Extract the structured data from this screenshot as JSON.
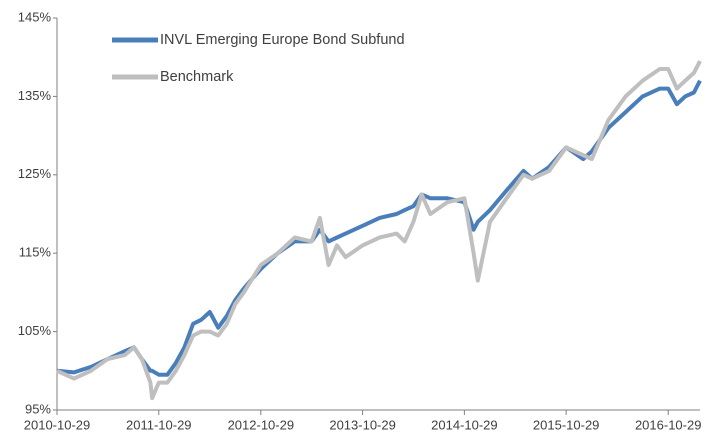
{
  "chart_data": {
    "type": "line",
    "x": [
      "2010-10-29",
      "2010-12-29",
      "2011-02-28",
      "2011-04-29",
      "2011-06-29",
      "2011-08-01",
      "2011-08-29",
      "2011-09-29",
      "2011-10-05",
      "2011-10-29",
      "2011-11-29",
      "2011-12-29",
      "2012-01-29",
      "2012-02-29",
      "2012-03-29",
      "2012-04-29",
      "2012-05-29",
      "2012-06-29",
      "2012-07-29",
      "2012-08-29",
      "2012-10-29",
      "2012-12-29",
      "2013-02-28",
      "2013-04-29",
      "2013-05-29",
      "2013-06-29",
      "2013-07-29",
      "2013-08-29",
      "2013-10-29",
      "2013-12-29",
      "2014-02-28",
      "2014-03-29",
      "2014-04-29",
      "2014-05-29",
      "2014-06-29",
      "2014-08-29",
      "2014-10-29",
      "2014-12-01",
      "2014-12-16",
      "2015-01-29",
      "2015-03-29",
      "2015-05-29",
      "2015-06-29",
      "2015-08-29",
      "2015-10-29",
      "2015-12-29",
      "2016-01-29",
      "2016-03-29",
      "2016-05-29",
      "2016-07-29",
      "2016-09-29",
      "2016-10-29",
      "2016-11-29",
      "2016-12-29",
      "2017-01-29",
      "2017-02-20"
    ],
    "series": [
      {
        "name": "INVL Emerging Europe Bond Subfund",
        "color": "#4a7ebb",
        "values": [
          100,
          99.8,
          100.5,
          101.5,
          102.5,
          103,
          101.5,
          100,
          100,
          99.5,
          99.5,
          101,
          103,
          106,
          106.5,
          107.5,
          105.5,
          107,
          109,
          110.5,
          113,
          115,
          116.5,
          116.5,
          118,
          116.5,
          117,
          117.5,
          118.5,
          119.5,
          120,
          120.5,
          121,
          122.5,
          122,
          122,
          121.5,
          118,
          119,
          120.5,
          123,
          125.5,
          124.5,
          126,
          128.5,
          127,
          128,
          131,
          133,
          135,
          136,
          136,
          134,
          135,
          135.5,
          137
        ]
      },
      {
        "name": "Benchmark",
        "color": "#bfbfbf",
        "values": [
          100,
          99,
          100,
          101.5,
          102,
          103,
          101.5,
          98.5,
          96.5,
          98.5,
          98.5,
          100,
          102,
          104.5,
          105,
          105,
          104.5,
          106,
          108.5,
          110,
          113.5,
          115,
          117,
          116.5,
          119.5,
          113.5,
          116,
          114.5,
          116,
          117,
          117.5,
          116.5,
          119,
          122.5,
          120,
          121.5,
          122,
          115,
          111.5,
          119,
          122,
          125,
          124.5,
          125.5,
          128.5,
          127.5,
          127,
          132,
          135,
          137,
          138.5,
          138.5,
          136,
          137,
          138,
          139.5
        ]
      }
    ],
    "xlim": [
      "2010-10-29",
      "2017-02-20"
    ],
    "xticks": [
      "2010-10-29",
      "2011-10-29",
      "2012-10-29",
      "2013-10-29",
      "2014-10-29",
      "2015-10-29",
      "2016-10-29"
    ],
    "ylim": [
      95,
      145
    ],
    "yticks": [
      {
        "value": 95,
        "label": "95%"
      },
      {
        "value": 105,
        "label": "105%"
      },
      {
        "value": 115,
        "label": "115%"
      },
      {
        "value": 125,
        "label": "125%"
      },
      {
        "value": 135,
        "label": "135%"
      },
      {
        "value": 145,
        "label": "145%"
      }
    ],
    "grid": false,
    "legend": "top-left"
  }
}
